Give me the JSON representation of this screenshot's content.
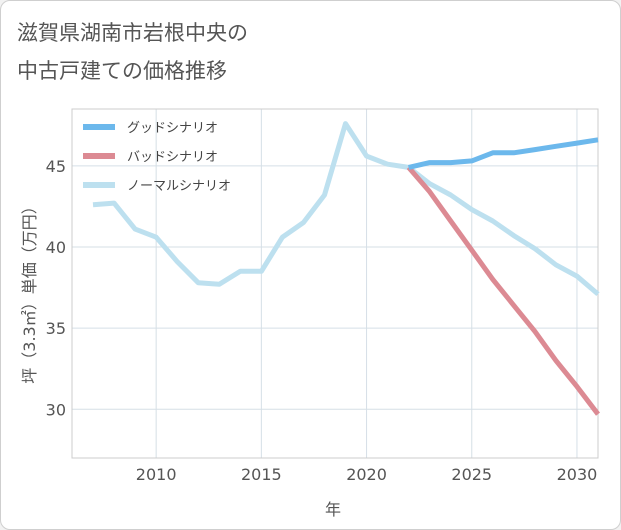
{
  "title_lines": [
    "滋賀県湖南市岩根中央の",
    "中古戸建ての価格推移"
  ],
  "chart_data": {
    "type": "line",
    "title": "滋賀県湖南市岩根中央の中古戸建ての価格推移",
    "xlabel": "年",
    "ylabel": "坪（3.3㎡）単価（万円）",
    "xlim": [
      2006,
      2031
    ],
    "ylim": [
      27,
      48.5
    ],
    "xticks": [
      2010,
      2015,
      2020,
      2025,
      2030
    ],
    "yticks": [
      30,
      35,
      40,
      45
    ],
    "grid": true,
    "legend_position": "top-left",
    "series": [
      {
        "name": "グッドシナリオ",
        "color": "#6cb8ec",
        "x": [
          2022,
          2023,
          2024,
          2025,
          2026,
          2027,
          2028,
          2029,
          2030,
          2031
        ],
        "y": [
          44.9,
          45.2,
          45.2,
          45.3,
          45.8,
          45.8,
          46.0,
          46.2,
          46.4,
          46.6
        ]
      },
      {
        "name": "バッドシナリオ",
        "color": "#dc8a93",
        "x": [
          2022,
          2023,
          2024,
          2025,
          2026,
          2027,
          2028,
          2029,
          2030,
          2031
        ],
        "y": [
          44.9,
          43.4,
          41.6,
          39.8,
          38.0,
          36.4,
          34.8,
          33.0,
          31.4,
          29.7
        ]
      },
      {
        "name": "ノーマルシナリオ",
        "color": "#bde0ef",
        "x": [
          2007,
          2008,
          2009,
          2010,
          2011,
          2012,
          2013,
          2014,
          2015,
          2016,
          2017,
          2018,
          2019,
          2020,
          2021,
          2022,
          2023,
          2024,
          2025,
          2026,
          2027,
          2028,
          2029,
          2030,
          2031
        ],
        "y": [
          42.6,
          42.7,
          41.1,
          40.6,
          39.1,
          37.8,
          37.7,
          38.5,
          38.5,
          40.6,
          41.5,
          43.2,
          47.6,
          45.6,
          45.1,
          44.9,
          43.9,
          43.2,
          42.3,
          41.6,
          40.7,
          39.9,
          38.9,
          38.2,
          37.1
        ]
      }
    ]
  }
}
